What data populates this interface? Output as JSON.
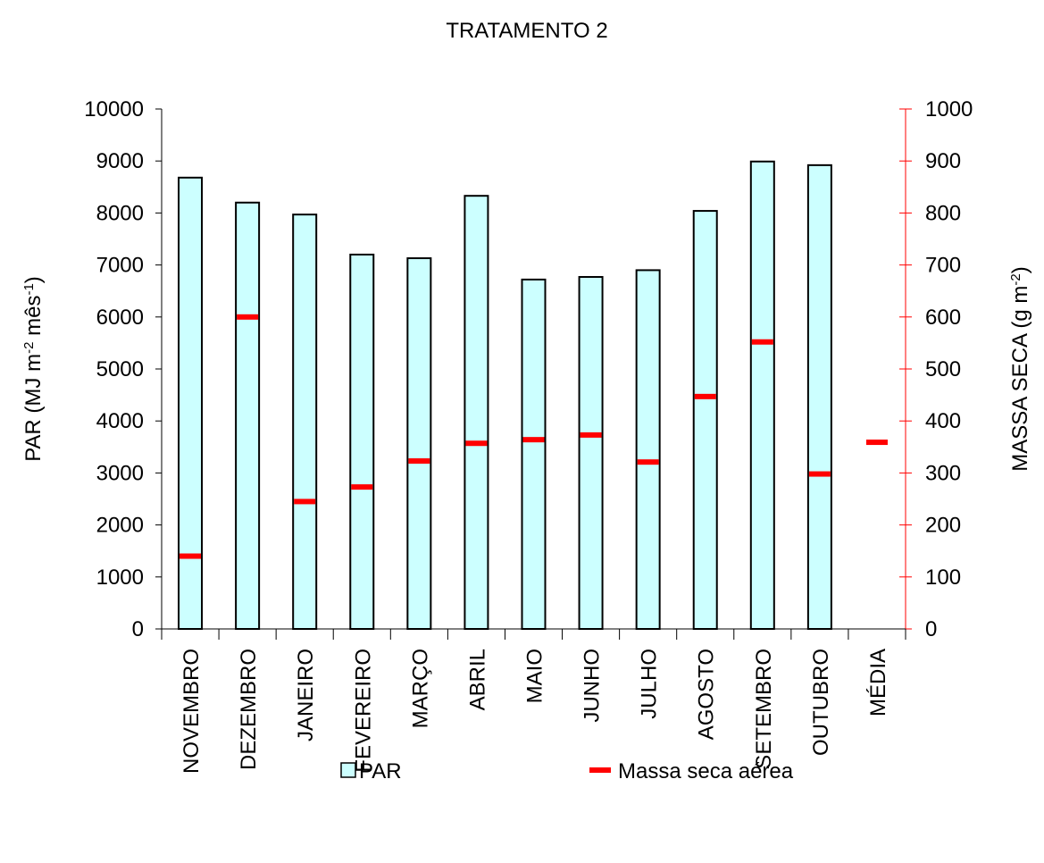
{
  "chart_data": {
    "type": "bar",
    "title": "TRATAMENTO 2",
    "ylabel": [
      "PAR (MJ m",
      "-2",
      " mês",
      "-1",
      ")"
    ],
    "y2label": [
      "MASSA SECA (g m",
      "-2",
      ")"
    ],
    "categories": [
      "NOVEMBRO",
      "DEZEMBRO",
      "JANEIRO",
      "FEVEREIRO",
      "MARÇO",
      "ABRIL",
      "MAIO",
      "JUNHO",
      "JULHO",
      "AGOSTO",
      "SETEMBRO",
      "OUTUBRO",
      "MÉDIA"
    ],
    "series": [
      {
        "name": "PAR",
        "color": "#ccffff",
        "values": [
          8680,
          8200,
          7970,
          7200,
          7130,
          8330,
          6720,
          6770,
          6900,
          8040,
          8990,
          8920,
          null
        ]
      },
      {
        "name": "Massa seca aérea",
        "color": "#ff0000",
        "axis": "y2",
        "values": [
          140,
          600,
          245,
          273,
          323,
          357,
          364,
          373,
          321,
          447,
          552,
          298,
          359
        ]
      }
    ],
    "ylim": [
      0,
      10000
    ],
    "yticks": [
      0,
      1000,
      2000,
      3000,
      4000,
      5000,
      6000,
      7000,
      8000,
      9000,
      10000
    ],
    "y2lim": [
      0,
      1000
    ],
    "y2ticks": [
      0,
      100,
      200,
      300,
      400,
      500,
      600,
      700,
      800,
      900,
      1000
    ],
    "y2color": "#ff0000",
    "grid": false,
    "legend": "bottom"
  }
}
